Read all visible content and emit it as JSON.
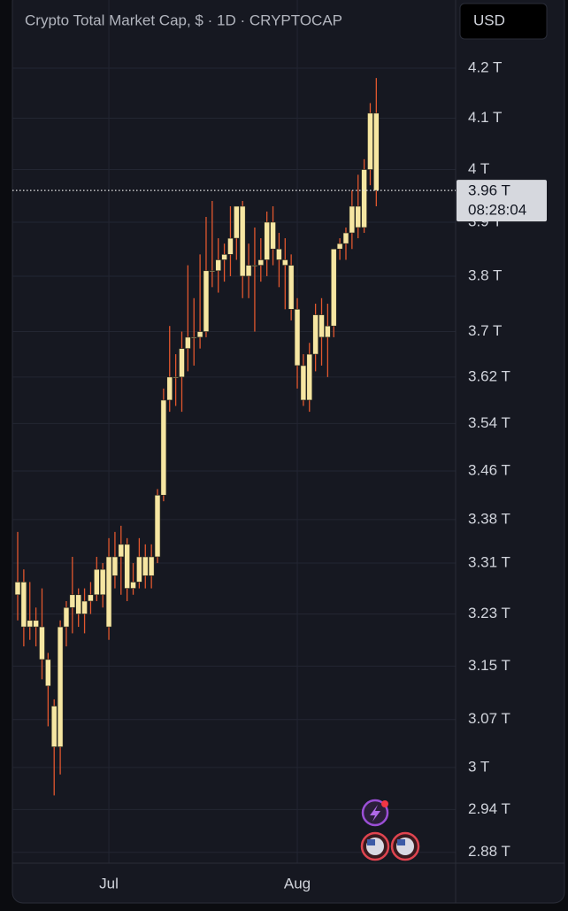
{
  "chart_data": {
    "type": "candlestick",
    "title": "Crypto Total Market Cap, $ · 1D · CRYPTOCAP",
    "currency_button": "USD",
    "categories": [
      null,
      null,
      null,
      null,
      null,
      null,
      null,
      null,
      null,
      null,
      null,
      null,
      null,
      null,
      null,
      "Jul",
      null,
      null,
      null,
      null,
      null,
      null,
      null,
      null,
      null,
      null,
      null,
      null,
      null,
      null,
      null,
      null,
      null,
      null,
      null,
      null,
      null,
      null,
      null,
      null,
      null,
      null,
      null,
      null,
      null,
      null,
      "Aug",
      null,
      null,
      null,
      null,
      null,
      null,
      null,
      null,
      null,
      null,
      null,
      null,
      null
    ],
    "open": [
      3.26,
      3.28,
      3.21,
      3.22,
      3.21,
      3.16,
      3.09,
      3.03,
      3.21,
      3.24,
      3.26,
      3.23,
      3.25,
      3.26,
      3.3,
      3.32,
      3.29,
      3.32,
      3.34,
      3.27,
      3.28,
      3.32,
      3.29,
      3.32,
      3.42,
      3.58,
      3.62,
      3.62,
      3.67,
      3.69,
      3.69,
      3.7,
      3.81,
      3.81,
      3.83,
      3.84,
      3.87,
      3.93,
      3.8,
      3.82,
      3.82,
      3.83,
      3.9,
      3.85,
      3.83,
      3.82,
      3.74,
      3.64,
      3.58,
      3.66,
      3.73,
      3.69,
      3.71,
      3.85,
      3.86,
      3.88,
      3.93,
      3.89,
      4.0,
      4.11
    ],
    "high": [
      3.36,
      3.3,
      3.28,
      3.24,
      3.27,
      3.17,
      3.1,
      3.22,
      3.25,
      3.32,
      3.27,
      3.27,
      3.28,
      3.32,
      3.31,
      3.35,
      3.36,
      3.37,
      3.35,
      3.31,
      3.35,
      3.34,
      3.34,
      3.43,
      3.6,
      3.71,
      3.66,
      3.7,
      3.82,
      3.76,
      3.84,
      3.91,
      3.94,
      3.87,
      3.86,
      3.93,
      3.93,
      3.94,
      3.86,
      3.89,
      3.87,
      3.92,
      3.93,
      3.88,
      3.87,
      3.84,
      3.76,
      3.66,
      3.68,
      3.75,
      3.76,
      3.75,
      3.85,
      3.87,
      3.89,
      3.96,
      3.99,
      4.02,
      4.13,
      4.18
    ],
    "low": [
      3.22,
      3.18,
      3.19,
      3.18,
      3.13,
      3.06,
      2.96,
      2.99,
      3.18,
      3.2,
      3.21,
      3.2,
      3.23,
      3.25,
      3.24,
      3.19,
      3.27,
      3.26,
      3.25,
      3.26,
      3.27,
      3.27,
      3.27,
      3.31,
      3.41,
      3.56,
      3.57,
      3.56,
      3.63,
      3.64,
      3.67,
      3.69,
      3.78,
      3.77,
      3.79,
      3.8,
      3.83,
      3.76,
      3.76,
      3.7,
      3.79,
      3.8,
      3.82,
      3.78,
      3.74,
      3.72,
      3.6,
      3.57,
      3.56,
      3.63,
      3.64,
      3.62,
      3.69,
      3.83,
      3.83,
      3.85,
      3.87,
      3.88,
      3.97,
      3.93
    ],
    "close": [
      3.28,
      3.21,
      3.22,
      3.21,
      3.16,
      3.12,
      3.03,
      3.21,
      3.24,
      3.26,
      3.23,
      3.25,
      3.26,
      3.3,
      3.26,
      3.21,
      3.32,
      3.34,
      3.27,
      3.28,
      3.32,
      3.29,
      3.32,
      3.42,
      3.58,
      3.62,
      3.62,
      3.67,
      3.69,
      3.69,
      3.7,
      3.81,
      3.81,
      3.83,
      3.84,
      3.87,
      3.93,
      3.8,
      3.82,
      3.82,
      3.83,
      3.9,
      3.85,
      3.83,
      3.82,
      3.74,
      3.64,
      3.58,
      3.66,
      3.73,
      3.69,
      3.71,
      3.85,
      3.86,
      3.88,
      3.93,
      3.89,
      4.0,
      4.11,
      3.96
    ],
    "body_color": "#f6e6a2",
    "wick_color": "#e2572e",
    "log_scale": true,
    "grid": true,
    "ylim": [
      2.865,
      4.34
    ],
    "yticks": [
      {
        "value": 4.2,
        "label": "4.2 T"
      },
      {
        "value": 4.1,
        "label": "4.1 T"
      },
      {
        "value": 4,
        "label": "4 T"
      },
      {
        "value": 3.9,
        "label": "3.9 T"
      },
      {
        "value": 3.8,
        "label": "3.8 T"
      },
      {
        "value": 3.7,
        "label": "3.7 T"
      },
      {
        "value": 3.62,
        "label": "3.62 T"
      },
      {
        "value": 3.54,
        "label": "3.54 T"
      },
      {
        "value": 3.46,
        "label": "3.46 T"
      },
      {
        "value": 3.38,
        "label": "3.38 T"
      },
      {
        "value": 3.31,
        "label": "3.31 T"
      },
      {
        "value": 3.23,
        "label": "3.23 T"
      },
      {
        "value": 3.15,
        "label": "3.15 T"
      },
      {
        "value": 3.07,
        "label": "3.07 T"
      },
      {
        "value": 3,
        "label": "3 T"
      },
      {
        "value": 2.94,
        "label": "2.94 T"
      },
      {
        "value": 2.88,
        "label": "2.88 T"
      }
    ],
    "current_price": {
      "value": 3.96,
      "label": "3.96 T"
    },
    "countdown": "08:28:04"
  }
}
